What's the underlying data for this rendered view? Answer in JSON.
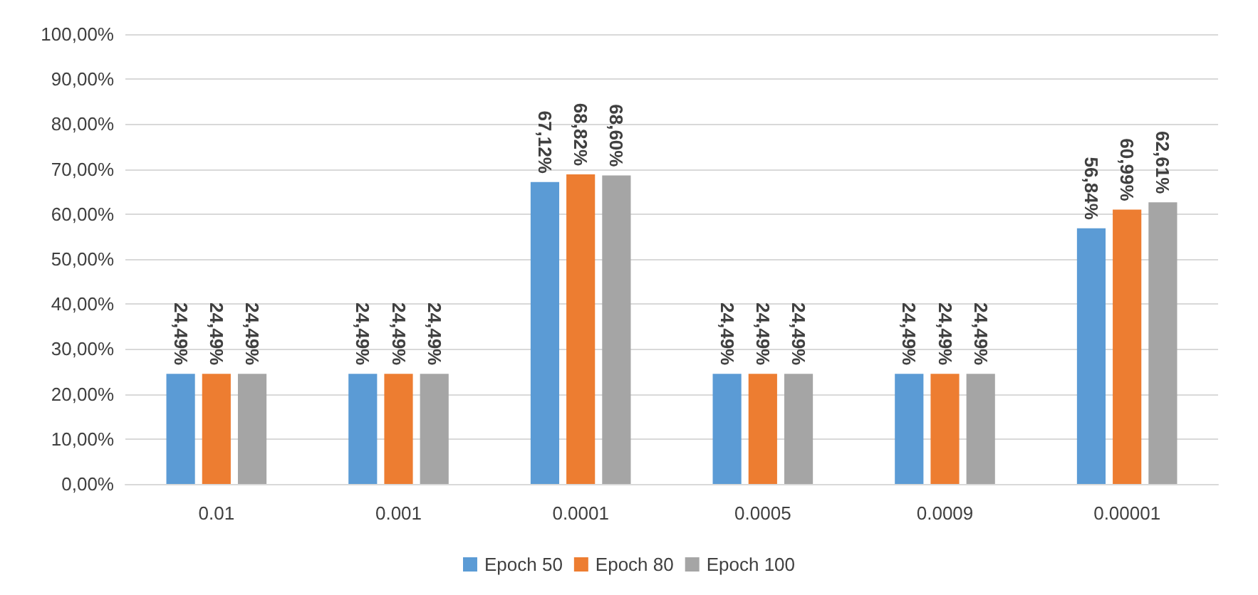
{
  "chart_data": {
    "type": "bar",
    "categories": [
      "0.01",
      "0.001",
      "0.0001",
      "0.0005",
      "0.0009",
      "0.00001"
    ],
    "series": [
      {
        "name": "Epoch 50",
        "color": "#5b9bd5",
        "values": [
          24.49,
          24.49,
          67.12,
          24.49,
          24.49,
          56.84
        ],
        "value_labels": [
          "24,49%",
          "24,49%",
          "67,12%",
          "24,49%",
          "24,49%",
          "56,84%"
        ]
      },
      {
        "name": "Epoch 80",
        "color": "#ed7d31",
        "values": [
          24.49,
          24.49,
          68.82,
          24.49,
          24.49,
          60.99
        ],
        "value_labels": [
          "24,49%",
          "24,49%",
          "68,82%",
          "24,49%",
          "24,49%",
          "60,99%"
        ]
      },
      {
        "name": "Epoch 100",
        "color": "#a5a5a5",
        "values": [
          24.49,
          24.49,
          68.6,
          24.49,
          24.49,
          62.61
        ],
        "value_labels": [
          "24,49%",
          "24,49%",
          "68,60%",
          "24,49%",
          "24,49%",
          "62,61%"
        ]
      }
    ],
    "ylim": [
      0,
      100
    ],
    "yticks": [
      {
        "value": 0,
        "label": "0,00%"
      },
      {
        "value": 10,
        "label": "10,00%"
      },
      {
        "value": 20,
        "label": "20,00%"
      },
      {
        "value": 30,
        "label": "30,00%"
      },
      {
        "value": 40,
        "label": "40,00%"
      },
      {
        "value": 50,
        "label": "50,00%"
      },
      {
        "value": 60,
        "label": "60,00%"
      },
      {
        "value": 70,
        "label": "70,00%"
      },
      {
        "value": 80,
        "label": "80,00%"
      },
      {
        "value": 90,
        "label": "90,00%"
      },
      {
        "value": 100,
        "label": "100,00%"
      }
    ],
    "grid": "y",
    "legend": "bottom"
  }
}
